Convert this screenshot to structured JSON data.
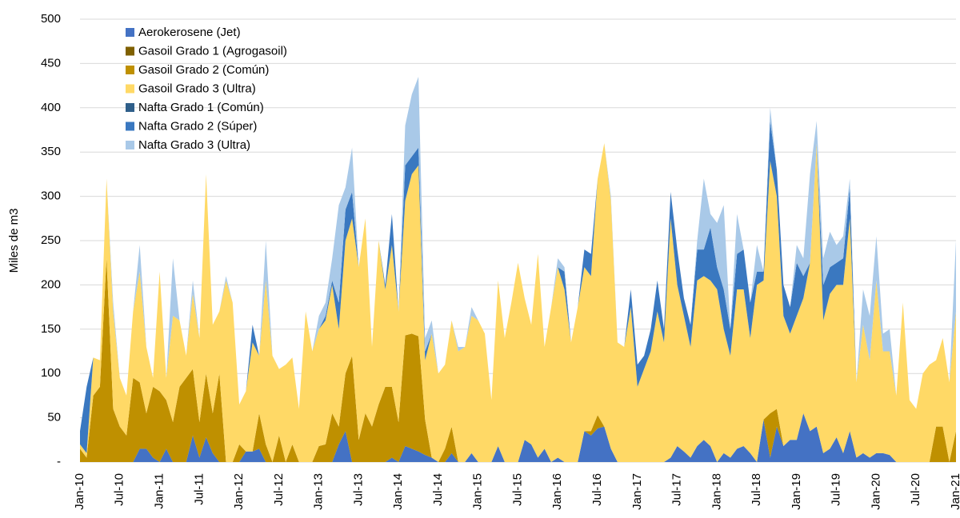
{
  "chart_data": {
    "type": "stacked_area",
    "y_label": "Miles de m3",
    "legend": "upper left",
    "grid": true,
    "ylim": [
      0,
      500
    ],
    "yticks": [
      {
        "value": 0,
        "label": "-"
      },
      50,
      100,
      150,
      200,
      250,
      300,
      350,
      400,
      450,
      500
    ],
    "categories": [
      "Jan-10",
      null,
      null,
      null,
      null,
      null,
      "Jul-10",
      null,
      null,
      null,
      null,
      null,
      "Jan-11",
      null,
      null,
      null,
      null,
      null,
      "Jul-11",
      null,
      null,
      null,
      null,
      null,
      "Jan-12",
      null,
      null,
      null,
      null,
      null,
      "Jul-12",
      null,
      null,
      null,
      null,
      null,
      "Jan-13",
      null,
      null,
      null,
      null,
      null,
      "Jul-13",
      null,
      null,
      null,
      null,
      null,
      "Jan-14",
      null,
      null,
      null,
      null,
      null,
      "Jul-14",
      null,
      null,
      null,
      null,
      null,
      "Jan-15",
      null,
      null,
      null,
      null,
      null,
      "Jul-15",
      null,
      null,
      null,
      null,
      null,
      "Jan-16",
      null,
      null,
      null,
      null,
      null,
      "Jul-16",
      null,
      null,
      null,
      null,
      null,
      "Jan-17",
      null,
      null,
      null,
      null,
      null,
      "Jul-17",
      null,
      null,
      null,
      null,
      null,
      "Jan-18",
      null,
      null,
      null,
      null,
      null,
      "Jul-18",
      null,
      null,
      null,
      null,
      null,
      "Jan-19",
      null,
      null,
      null,
      null,
      null,
      "Jul-19",
      null,
      null,
      null,
      null,
      null,
      "Jan-20",
      null,
      null,
      null,
      null,
      null,
      "Jul-20",
      null,
      null,
      null,
      null,
      null,
      "Jan-21"
    ],
    "series": [
      {
        "name": "Aerokerosene (Jet)",
        "color": "#4472c4",
        "values": [
          0,
          0,
          0,
          0,
          0,
          0,
          0,
          0,
          0,
          15,
          15,
          5,
          0,
          15,
          0,
          0,
          0,
          30,
          5,
          28,
          10,
          0,
          0,
          0,
          0,
          12,
          12,
          15,
          0,
          0,
          0,
          0,
          0,
          0,
          0,
          0,
          0,
          0,
          0,
          20,
          35,
          0,
          0,
          0,
          0,
          0,
          0,
          5,
          0,
          18,
          15,
          12,
          8,
          5,
          0,
          0,
          10,
          0,
          0,
          10,
          0,
          0,
          0,
          18,
          0,
          0,
          0,
          25,
          20,
          5,
          15,
          0,
          5,
          0,
          0,
          0,
          35,
          30,
          38,
          40,
          15,
          0,
          0,
          0,
          0,
          0,
          0,
          0,
          0,
          5,
          18,
          12,
          5,
          18,
          25,
          18,
          0,
          10,
          5,
          15,
          18,
          10,
          0,
          48,
          5,
          40,
          18,
          25,
          25,
          55,
          35,
          40,
          10,
          15,
          28,
          10,
          35,
          5,
          10,
          5,
          10,
          10,
          8,
          0,
          0,
          0,
          0,
          0,
          0,
          0,
          0,
          0,
          0
        ]
      },
      {
        "name": "Gasoil Grado 1 (Agrogasoil)",
        "color": "#7f6000",
        "values": [
          0,
          0,
          0,
          0,
          0,
          0,
          0,
          0,
          0,
          0,
          0,
          0,
          0,
          0,
          0,
          0,
          0,
          0,
          0,
          0,
          0,
          0,
          0,
          0,
          0,
          0,
          0,
          0,
          0,
          0,
          0,
          0,
          0,
          0,
          0,
          0,
          0,
          0,
          0,
          0,
          0,
          0,
          0,
          0,
          0,
          0,
          0,
          0,
          0,
          0,
          0,
          0,
          0,
          0,
          0,
          0,
          0,
          0,
          0,
          0,
          0,
          0,
          0,
          0,
          0,
          0,
          0,
          0,
          0,
          0,
          0,
          0,
          0,
          0,
          0,
          0,
          0,
          0,
          0,
          0,
          0,
          0,
          0,
          0,
          0,
          0,
          0,
          0,
          0,
          0,
          0,
          0,
          0,
          0,
          0,
          0,
          0,
          0,
          0,
          0,
          0,
          0,
          0,
          0,
          0,
          0,
          0,
          0,
          0,
          0,
          0,
          0,
          0,
          0,
          0,
          0,
          0,
          0,
          0,
          0,
          0,
          0,
          0,
          0,
          0,
          0,
          0,
          0,
          0,
          0,
          0,
          0,
          0
        ]
      },
      {
        "name": "Gasoil Grado 2 (Común)",
        "color": "#bf9000",
        "values": [
          15,
          5,
          75,
          85,
          230,
          60,
          40,
          30,
          95,
          75,
          40,
          80,
          80,
          55,
          45,
          85,
          95,
          75,
          40,
          72,
          45,
          100,
          0,
          0,
          20,
          0,
          0,
          40,
          20,
          0,
          30,
          0,
          20,
          0,
          0,
          0,
          18,
          20,
          55,
          20,
          65,
          120,
          25,
          55,
          40,
          65,
          85,
          80,
          45,
          125,
          130,
          130,
          40,
          0,
          0,
          15,
          30,
          0,
          0,
          0,
          0,
          0,
          0,
          0,
          0,
          0,
          0,
          0,
          0,
          0,
          0,
          0,
          0,
          0,
          0,
          0,
          0,
          5,
          15,
          0,
          0,
          0,
          0,
          0,
          0,
          0,
          0,
          0,
          0,
          0,
          0,
          0,
          0,
          0,
          0,
          0,
          0,
          0,
          0,
          0,
          0,
          0,
          0,
          0,
          50,
          20,
          0,
          0,
          0,
          0,
          0,
          0,
          0,
          0,
          0,
          0,
          0,
          0,
          0,
          0,
          0,
          0,
          0,
          0,
          0,
          0,
          0,
          0,
          0,
          40,
          40,
          0,
          35
        ]
      },
      {
        "name": "Gasoil Grado 3 (Ultra)",
        "color": "#ffd966",
        "values": [
          5,
          5,
          43,
          30,
          90,
          110,
          55,
          45,
          75,
          125,
          75,
          10,
          135,
          25,
          120,
          75,
          25,
          85,
          95,
          225,
          100,
          70,
          205,
          180,
          45,
          68,
          123,
          65,
          185,
          120,
          75,
          110,
          98,
          60,
          170,
          125,
          132,
          140,
          145,
          110,
          150,
          155,
          195,
          220,
          90,
          185,
          110,
          160,
          125,
          152,
          180,
          193,
          67,
          140,
          100,
          95,
          120,
          125,
          130,
          155,
          160,
          145,
          70,
          187,
          140,
          180,
          225,
          160,
          135,
          230,
          115,
          175,
          215,
          195,
          135,
          175,
          185,
          175,
          267,
          320,
          280,
          135,
          130,
          175,
          85,
          105,
          125,
          170,
          135,
          270,
          182,
          153,
          125,
          187,
          185,
          187,
          195,
          140,
          115,
          180,
          177,
          130,
          200,
          157,
          285,
          240,
          147,
          120,
          140,
          130,
          190,
          320,
          150,
          175,
          172,
          190,
          240,
          85,
          145,
          110,
          195,
          115,
          117,
          75,
          180,
          70,
          60,
          100,
          110,
          75,
          100,
          90,
          135
        ]
      },
      {
        "name": "Nafta Grado 1 (Común)",
        "color": "#2f5f8a",
        "values": [
          0,
          0,
          0,
          0,
          0,
          0,
          0,
          0,
          0,
          0,
          0,
          0,
          0,
          0,
          0,
          0,
          0,
          0,
          0,
          0,
          0,
          0,
          0,
          0,
          0,
          0,
          0,
          0,
          0,
          0,
          0,
          0,
          0,
          0,
          0,
          0,
          0,
          0,
          0,
          0,
          0,
          0,
          0,
          0,
          0,
          0,
          0,
          0,
          0,
          0,
          0,
          0,
          0,
          0,
          0,
          0,
          0,
          0,
          0,
          0,
          0,
          0,
          0,
          0,
          0,
          0,
          0,
          0,
          0,
          0,
          0,
          0,
          0,
          0,
          0,
          0,
          0,
          0,
          0,
          0,
          0,
          0,
          0,
          0,
          0,
          0,
          0,
          0,
          0,
          0,
          0,
          0,
          0,
          0,
          0,
          0,
          0,
          0,
          0,
          0,
          0,
          0,
          0,
          0,
          0,
          0,
          0,
          0,
          0,
          0,
          0,
          0,
          0,
          0,
          0,
          0,
          0,
          0,
          0,
          0,
          0,
          0,
          0,
          0,
          0,
          0,
          0,
          0,
          0,
          0,
          0,
          0,
          0
        ]
      },
      {
        "name": "Nafta Grado 2 (Súper)",
        "color": "#3a78c0",
        "values": [
          15,
          75,
          0,
          0,
          0,
          0,
          0,
          0,
          0,
          0,
          0,
          0,
          0,
          0,
          0,
          0,
          0,
          0,
          0,
          0,
          0,
          0,
          0,
          0,
          0,
          0,
          20,
          0,
          0,
          0,
          0,
          0,
          0,
          0,
          0,
          0,
          0,
          5,
          5,
          30,
          35,
          30,
          0,
          0,
          0,
          0,
          5,
          35,
          0,
          40,
          20,
          20,
          10,
          0,
          0,
          0,
          0,
          0,
          0,
          0,
          0,
          0,
          0,
          0,
          0,
          0,
          0,
          0,
          0,
          0,
          0,
          0,
          0,
          20,
          0,
          0,
          20,
          25,
          0,
          0,
          0,
          0,
          0,
          20,
          25,
          15,
          25,
          35,
          15,
          30,
          40,
          20,
          25,
          35,
          30,
          60,
          25,
          45,
          30,
          40,
          45,
          40,
          15,
          10,
          45,
          30,
          35,
          30,
          60,
          25,
          0,
          0,
          40,
          30,
          25,
          30,
          35,
          0,
          0,
          0,
          0,
          0,
          0,
          0,
          0,
          0,
          0,
          0,
          0,
          0,
          0,
          0,
          0
        ]
      },
      {
        "name": "Nafta Grado 3 (Ultra)",
        "color": "#a9c9e8",
        "values": [
          0,
          0,
          0,
          0,
          0,
          10,
          0,
          0,
          0,
          30,
          0,
          0,
          0,
          0,
          65,
          0,
          0,
          15,
          0,
          0,
          0,
          0,
          5,
          0,
          0,
          0,
          0,
          0,
          45,
          0,
          0,
          0,
          0,
          0,
          0,
          0,
          15,
          15,
          25,
          110,
          25,
          50,
          0,
          0,
          0,
          0,
          0,
          0,
          0,
          45,
          70,
          80,
          15,
          15,
          0,
          0,
          0,
          5,
          0,
          10,
          0,
          0,
          0,
          0,
          0,
          0,
          0,
          0,
          0,
          0,
          0,
          0,
          10,
          5,
          0,
          0,
          0,
          0,
          0,
          0,
          5,
          0,
          0,
          0,
          0,
          0,
          0,
          0,
          0,
          0,
          0,
          0,
          0,
          10,
          80,
          15,
          50,
          95,
          0,
          45,
          0,
          0,
          30,
          0,
          15,
          0,
          0,
          0,
          20,
          20,
          100,
          25,
          30,
          40,
          20,
          25,
          10,
          0,
          40,
          50,
          50,
          20,
          25,
          0,
          0,
          0,
          0,
          0,
          0,
          0,
          0,
          0,
          80
        ]
      }
    ]
  }
}
